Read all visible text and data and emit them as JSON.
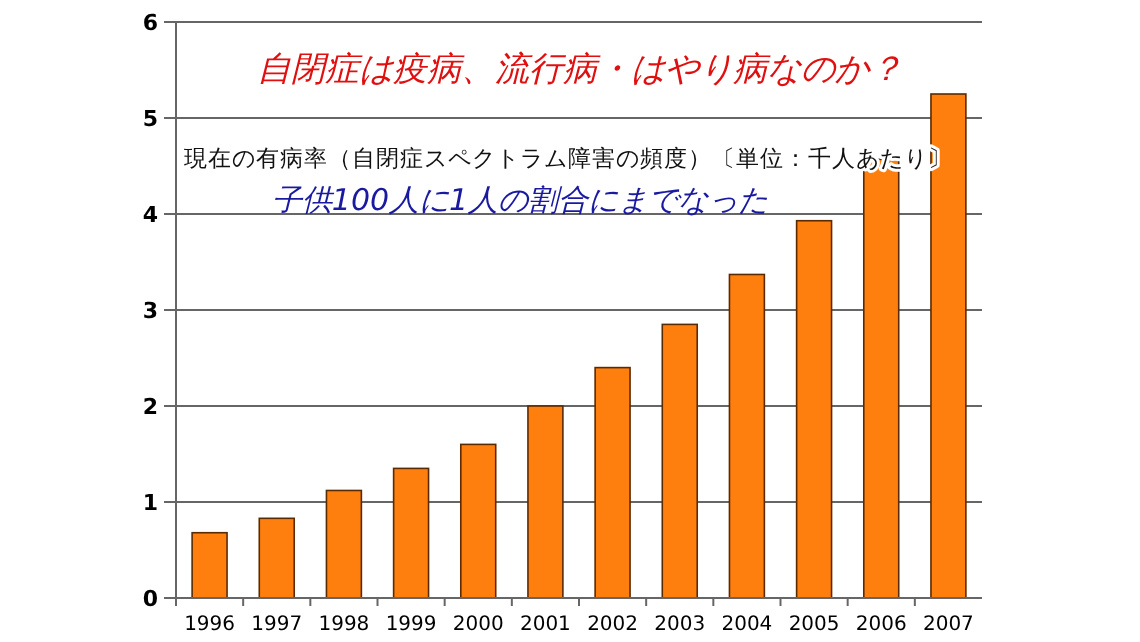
{
  "chart_data": {
    "type": "bar",
    "title": "自閉症は疫病、流行病・はやり病なのか？",
    "subtitle": "現在の有病率（自閉症スペクトラム障害の頻度）〔単位：千人あたり〕",
    "annotations": [
      "子供100人に1人の割合にまでなった"
    ],
    "categories": [
      "1996",
      "1997",
      "1998",
      "1999",
      "2000",
      "2001",
      "2002",
      "2003",
      "2004",
      "2005",
      "2006",
      "2007"
    ],
    "values": [
      0.68,
      0.83,
      1.12,
      1.35,
      1.6,
      2.0,
      2.4,
      2.85,
      3.37,
      3.93,
      4.57,
      5.25
    ],
    "color": "#ff7f0e",
    "ylim": [
      0,
      6
    ],
    "yticks": [
      0,
      1,
      2,
      3,
      4,
      5,
      6
    ],
    "grid": "y"
  }
}
